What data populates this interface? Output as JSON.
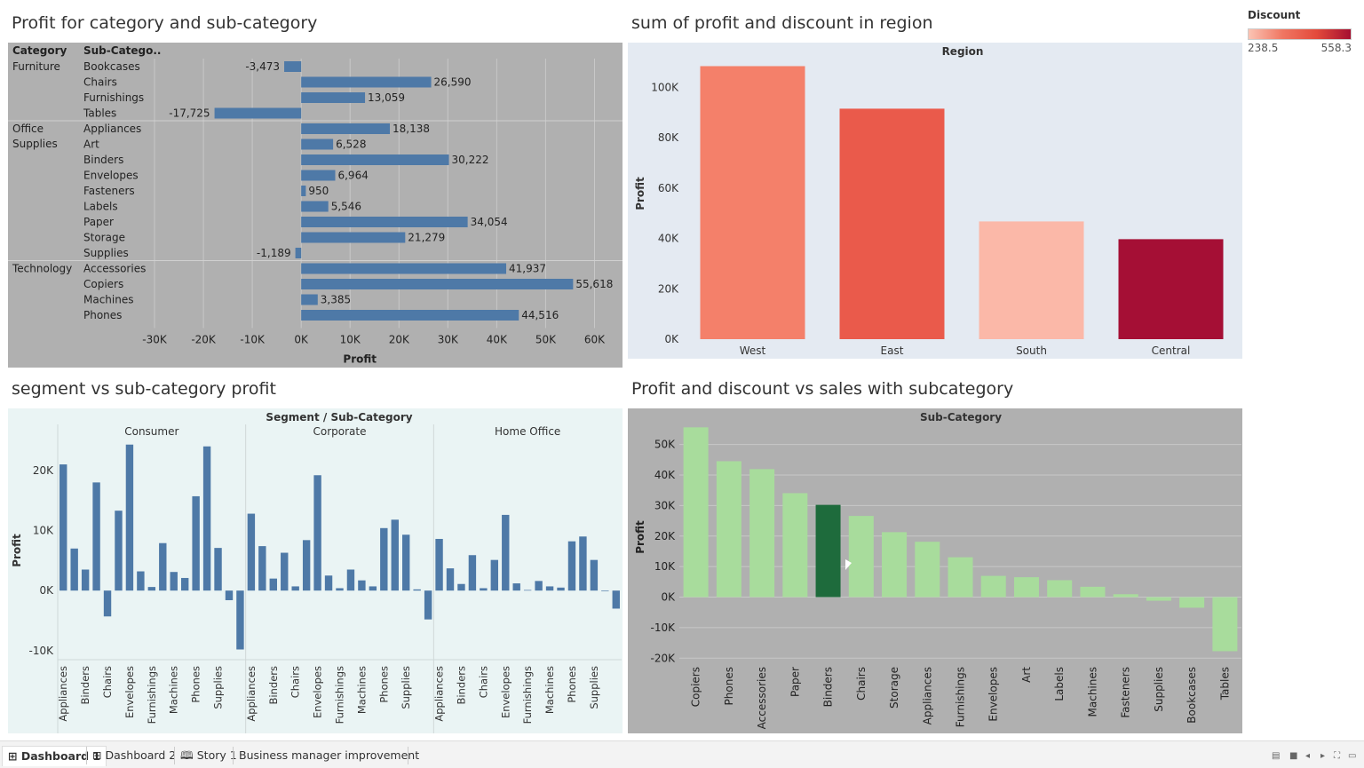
{
  "sheets": {
    "s1_title": "Profit for category and sub-category",
    "s2_title": "sum of profit and discount in region",
    "s3_title": "segment vs sub-category profit",
    "s4_title": "Profit and discount vs sales with subcategory"
  },
  "legend": {
    "title": "Discount",
    "min_label": "238.5",
    "max_label": "558.3",
    "colors": [
      "#fbc4b4",
      "#f07662",
      "#e34a3b",
      "#a50f30"
    ]
  },
  "tabs": [
    {
      "label": "Dashboard 1",
      "icon": "grid-icon",
      "active": true
    },
    {
      "label": "Dashboard 2",
      "icon": "grid-icon",
      "active": false
    },
    {
      "label": "Story 1",
      "icon": "book-icon",
      "active": false
    },
    {
      "label": "Business manager improvement",
      "icon": "",
      "active": false
    }
  ],
  "chart_data": [
    {
      "type": "bar",
      "orientation": "horizontal",
      "title": "Profit for category and sub-category",
      "row_headers": [
        "Category",
        "Sub-Catego.."
      ],
      "xlabel": "Profit",
      "xlim": [
        -30000,
        65000
      ],
      "xticks": [
        "-30K",
        "-20K",
        "-10K",
        "0K",
        "10K",
        "20K",
        "30K",
        "40K",
        "50K",
        "60K"
      ],
      "xtick_values": [
        -30000,
        -20000,
        -10000,
        0,
        10000,
        20000,
        30000,
        40000,
        50000,
        60000
      ],
      "groups": [
        {
          "category": "Furniture",
          "items": [
            {
              "name": "Bookcases",
              "value": -3473,
              "label": "-3,473"
            },
            {
              "name": "Chairs",
              "value": 26590,
              "label": "26,590"
            },
            {
              "name": "Furnishings",
              "value": 13059,
              "label": "13,059"
            },
            {
              "name": "Tables",
              "value": -17725,
              "label": "-17,725"
            }
          ]
        },
        {
          "category": "Office Supplies",
          "items": [
            {
              "name": "Appliances",
              "value": 18138,
              "label": "18,138"
            },
            {
              "name": "Art",
              "value": 6528,
              "label": "6,528"
            },
            {
              "name": "Binders",
              "value": 30222,
              "label": "30,222"
            },
            {
              "name": "Envelopes",
              "value": 6964,
              "label": "6,964"
            },
            {
              "name": "Fasteners",
              "value": 950,
              "label": "950"
            },
            {
              "name": "Labels",
              "value": 5546,
              "label": "5,546"
            },
            {
              "name": "Paper",
              "value": 34054,
              "label": "34,054"
            },
            {
              "name": "Storage",
              "value": 21279,
              "label": "21,279"
            },
            {
              "name": "Supplies",
              "value": -1189,
              "label": "-1,189"
            }
          ]
        },
        {
          "category": "Technology",
          "items": [
            {
              "name": "Accessories",
              "value": 41937,
              "label": "41,937"
            },
            {
              "name": "Copiers",
              "value": 55618,
              "label": "55,618"
            },
            {
              "name": "Machines",
              "value": 3385,
              "label": "3,385"
            },
            {
              "name": "Phones",
              "value": 44516,
              "label": "44,516"
            }
          ]
        }
      ],
      "bar_color": "#4e79a7",
      "background": "#b0b0b0",
      "grid": true
    },
    {
      "type": "bar",
      "title": "sum of profit and discount in region",
      "column_header": "Region",
      "ylabel": "Profit",
      "ylim": [
        0,
        110000
      ],
      "yticks": [
        "0K",
        "20K",
        "40K",
        "60K",
        "80K",
        "100K"
      ],
      "ytick_values": [
        0,
        20000,
        40000,
        60000,
        80000,
        100000
      ],
      "categories": [
        "West",
        "East",
        "South",
        "Central"
      ],
      "values": [
        108418,
        91523,
        46749,
        39706
      ],
      "colors": [
        "#f4806a",
        "#ea5a4b",
        "#fbb8a8",
        "#a50f35"
      ],
      "background": "#e4eaf2"
    },
    {
      "type": "bar",
      "title": "segment vs sub-category profit",
      "column_header": "Segment / Sub-Category",
      "ylabel": "Profit",
      "ylim": [
        -11500,
        25000
      ],
      "yticks": [
        "-10K",
        "0K",
        "10K",
        "20K"
      ],
      "ytick_values": [
        -10000,
        0,
        10000,
        20000
      ],
      "visible_sub_labels": [
        "Appliances",
        "Binders",
        "Chairs",
        "Envelopes",
        "Furnishings",
        "Machines",
        "Phones",
        "Supplies"
      ],
      "segments": [
        {
          "name": "Consumer",
          "values": [
            21000,
            7000,
            3500,
            18000,
            -4300,
            13300,
            24300,
            3200,
            600,
            7900,
            3100,
            2100,
            15700,
            24000,
            7100,
            -1600,
            -9800
          ]
        },
        {
          "name": "Corporate",
          "values": [
            12800,
            7400,
            2000,
            6300,
            700,
            8400,
            19200,
            2500,
            400,
            3500,
            1700,
            700,
            10400,
            11800,
            9300,
            200,
            -4800
          ]
        },
        {
          "name": "Home Office",
          "values": [
            8600,
            3700,
            1100,
            5900,
            400,
            5100,
            12600,
            1200,
            100,
            1600,
            700,
            500,
            8200,
            9000,
            5100,
            -100,
            -3000
          ]
        }
      ],
      "bar_color": "#4e79a7",
      "background": "#eaf4f4"
    },
    {
      "type": "bar",
      "title": "Profit and discount vs sales with subcategory",
      "column_header": "Sub-Category",
      "ylabel": "Profit",
      "ylim": [
        -20500,
        56000
      ],
      "yticks": [
        "-20K",
        "-10K",
        "0K",
        "10K",
        "20K",
        "30K",
        "40K",
        "50K"
      ],
      "ytick_values": [
        -20000,
        -10000,
        0,
        10000,
        20000,
        30000,
        40000,
        50000
      ],
      "categories": [
        "Copiers",
        "Phones",
        "Accessories",
        "Paper",
        "Binders",
        "Chairs",
        "Storage",
        "Appliances",
        "Furnishings",
        "Envelopes",
        "Art",
        "Labels",
        "Machines",
        "Fasteners",
        "Supplies",
        "Bookcases",
        "Tables"
      ],
      "values": [
        55618,
        44516,
        41937,
        34054,
        30222,
        26590,
        21279,
        18138,
        13059,
        6964,
        6528,
        5546,
        3385,
        950,
        -1189,
        -3473,
        -17725
      ],
      "bar_color": "#a8dc9c",
      "highlight": "Binders",
      "highlight_color": "#1e6b3c",
      "background": "#b0b0b0"
    }
  ]
}
